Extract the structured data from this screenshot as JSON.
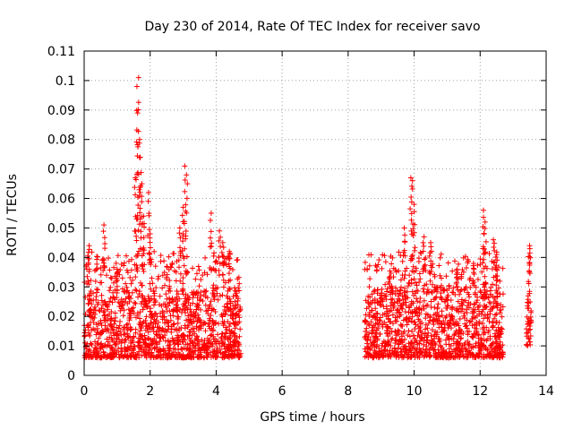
{
  "chart_data": {
    "type": "scatter",
    "title": "Day 230 of 2014, Rate Of TEC Index for receiver savo",
    "xlabel": "GPS time / hours",
    "ylabel": "ROTI / TECUs",
    "xlim": [
      0,
      14
    ],
    "ylim": [
      0,
      0.11
    ],
    "x_ticks": [
      "0",
      "2",
      "4",
      "6",
      "8",
      "10",
      "12",
      "14"
    ],
    "y_ticks": [
      "0",
      "0.01",
      "0.02",
      "0.03",
      "0.04",
      "0.05",
      "0.06",
      "0.07",
      "0.08",
      "0.09",
      "0.1",
      "0.11"
    ],
    "grid": true,
    "marker": "+",
    "series": [
      {
        "name": "ROTI",
        "color": "#ff0000",
        "segments": [
          {
            "x_start": 0.0,
            "x_end": 4.75,
            "baseline_low": 0.006,
            "baseline_high": 0.03
          },
          {
            "x_start": 8.5,
            "x_end": 12.7,
            "baseline_low": 0.006,
            "baseline_high": 0.03
          },
          {
            "x_start": 13.4,
            "x_end": 13.55,
            "baseline_low": 0.01,
            "baseline_high": 0.03
          }
        ],
        "peaks": [
          {
            "x": 0.15,
            "y": 0.044
          },
          {
            "x": 0.6,
            "y": 0.051
          },
          {
            "x": 1.0,
            "y": 0.036
          },
          {
            "x": 1.55,
            "y": 0.067
          },
          {
            "x": 1.6,
            "y": 0.098
          },
          {
            "x": 1.65,
            "y": 0.101
          },
          {
            "x": 1.62,
            "y": 0.089
          },
          {
            "x": 1.68,
            "y": 0.08
          },
          {
            "x": 1.7,
            "y": 0.074
          },
          {
            "x": 1.75,
            "y": 0.065
          },
          {
            "x": 1.8,
            "y": 0.054
          },
          {
            "x": 1.95,
            "y": 0.062
          },
          {
            "x": 2.0,
            "y": 0.048
          },
          {
            "x": 2.9,
            "y": 0.05
          },
          {
            "x": 3.05,
            "y": 0.071
          },
          {
            "x": 3.1,
            "y": 0.068
          },
          {
            "x": 3.0,
            "y": 0.057
          },
          {
            "x": 3.85,
            "y": 0.055
          },
          {
            "x": 4.1,
            "y": 0.049
          },
          {
            "x": 4.2,
            "y": 0.045
          },
          {
            "x": 4.4,
            "y": 0.042
          },
          {
            "x": 9.7,
            "y": 0.05
          },
          {
            "x": 9.9,
            "y": 0.067
          },
          {
            "x": 9.95,
            "y": 0.066
          },
          {
            "x": 10.0,
            "y": 0.058
          },
          {
            "x": 10.3,
            "y": 0.047
          },
          {
            "x": 10.5,
            "y": 0.045
          },
          {
            "x": 11.3,
            "y": 0.036
          },
          {
            "x": 11.8,
            "y": 0.038
          },
          {
            "x": 12.1,
            "y": 0.056
          },
          {
            "x": 12.15,
            "y": 0.052
          },
          {
            "x": 12.4,
            "y": 0.046
          },
          {
            "x": 12.5,
            "y": 0.041
          },
          {
            "x": 13.5,
            "y": 0.044
          }
        ]
      }
    ]
  }
}
